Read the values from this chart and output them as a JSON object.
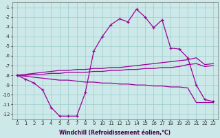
{
  "xlabel": "Windchill (Refroidissement éolien,°C)",
  "background_color": "#cce8e8",
  "grid_color": "#99cccc",
  "line_color": "#990099",
  "x_hours": [
    0,
    1,
    2,
    3,
    4,
    5,
    6,
    7,
    8,
    9,
    10,
    11,
    12,
    13,
    14,
    15,
    16,
    17,
    18,
    19,
    20,
    21,
    22,
    23
  ],
  "windchill": [
    -8.0,
    -8.4,
    -8.8,
    -9.5,
    -11.3,
    -12.2,
    -12.2,
    -12.2,
    -9.8,
    -5.5,
    -4.0,
    -2.8,
    -2.2,
    -2.5,
    -1.2,
    -2.0,
    -3.1,
    -2.3,
    -5.2,
    -5.3,
    -6.2,
    -9.0,
    -10.5,
    -10.7
  ],
  "band_top": [
    -8.0,
    -7.9,
    -7.8,
    -7.7,
    -7.6,
    -7.5,
    -7.5,
    -7.4,
    -7.4,
    -7.3,
    -7.3,
    -7.2,
    -7.2,
    -7.1,
    -7.0,
    -6.9,
    -6.8,
    -6.7,
    -6.6,
    -6.5,
    -6.4,
    -6.2,
    -6.9,
    -6.8
  ],
  "band_mid": [
    -8.0,
    -8.0,
    -7.9,
    -7.9,
    -7.8,
    -7.8,
    -7.7,
    -7.7,
    -7.7,
    -7.6,
    -7.6,
    -7.5,
    -7.5,
    -7.4,
    -7.4,
    -7.3,
    -7.3,
    -7.2,
    -7.2,
    -7.1,
    -6.9,
    -6.8,
    -7.1,
    -7.0
  ],
  "band_bot": [
    -8.0,
    -8.1,
    -8.2,
    -8.3,
    -8.4,
    -8.5,
    -8.5,
    -8.6,
    -8.7,
    -8.7,
    -8.8,
    -8.8,
    -8.9,
    -8.9,
    -9.0,
    -9.0,
    -9.1,
    -9.1,
    -9.2,
    -9.2,
    -9.3,
    -10.8,
    -10.8,
    -10.8
  ],
  "ylim": [
    -12.5,
    -0.5
  ],
  "yticks": [
    -1,
    -2,
    -3,
    -4,
    -5,
    -6,
    -7,
    -8,
    -9,
    -10,
    -11,
    -12
  ],
  "xlim": [
    -0.5,
    23.5
  ]
}
